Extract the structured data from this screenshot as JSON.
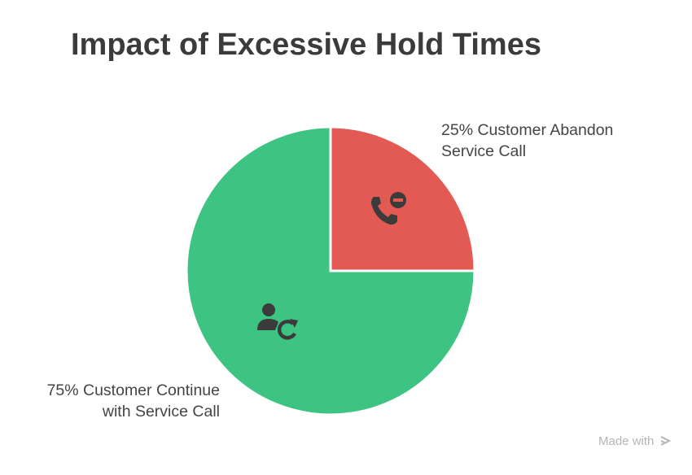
{
  "chart_data": {
    "type": "pie",
    "title": "Impact of Excessive Hold Times",
    "categories": [
      "Customer Abandon Service Call",
      "Customer Continue with Service Call"
    ],
    "values": [
      25,
      75
    ],
    "value_labels": [
      "25%",
      "75%"
    ],
    "colors": [
      "#e35a55",
      "#3ec482"
    ]
  },
  "watermark": "Made with"
}
